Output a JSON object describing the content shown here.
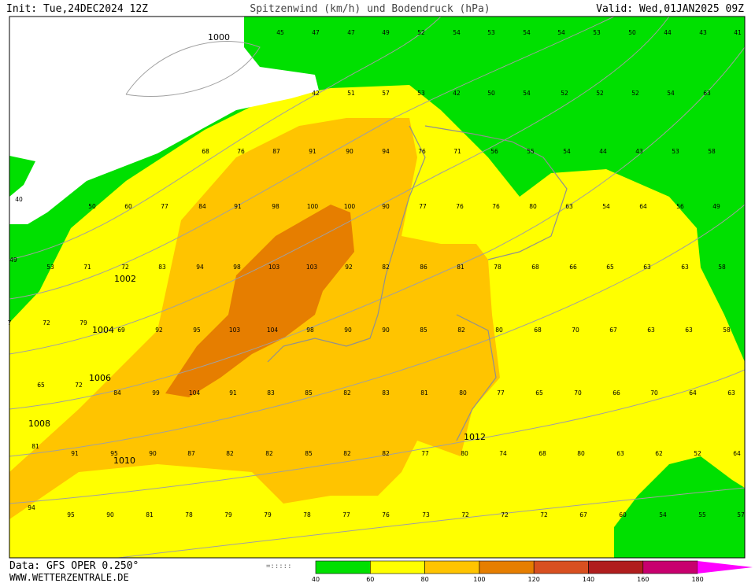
{
  "header": {
    "init": "Init: Tue,24DEC2024 12Z",
    "title": "Spitzenwind (km/h) und Bodendruck (hPa)",
    "valid": "Valid: Wed,01JAN2025 09Z"
  },
  "wind_rows": [
    [
      45,
      47,
      47,
      49,
      52,
      54,
      53,
      54,
      54,
      53,
      50,
      44,
      43,
      41
    ],
    [
      42,
      51,
      57,
      53,
      42,
      50,
      54,
      52,
      52,
      52,
      54,
      63
    ],
    [
      68,
      76,
      87,
      91,
      90,
      94,
      76,
      71,
      56,
      55,
      54,
      44,
      43,
      53,
      58
    ],
    [
      40,
      50,
      60,
      77,
      84,
      91,
      98,
      100,
      100,
      90,
      77,
      76,
      76,
      80,
      63,
      54,
      64,
      56,
      49
    ],
    [
      49,
      53,
      71,
      72,
      83,
      94,
      98,
      103,
      103,
      92,
      82,
      86,
      81,
      78,
      68,
      66,
      65,
      63,
      63,
      58
    ],
    [
      7,
      72,
      79,
      69,
      92,
      95,
      103,
      104,
      98,
      90,
      90,
      85,
      82,
      80,
      68,
      70,
      67,
      63,
      63,
      58
    ],
    [
      65,
      72,
      84,
      99,
      104,
      91,
      83,
      85,
      82,
      83,
      81,
      80,
      77,
      65,
      70,
      66,
      70,
      64,
      63
    ],
    [
      81,
      91,
      95,
      90,
      87,
      82,
      82,
      85,
      82,
      82,
      77,
      80,
      74,
      68,
      80,
      63,
      62,
      52,
      64
    ],
    [
      94,
      95,
      90,
      81,
      78,
      79,
      79,
      78,
      77,
      76,
      73,
      72,
      72,
      72,
      67,
      60,
      54,
      55,
      57
    ]
  ],
  "isobars": [
    1000,
    1002,
    1004,
    1006,
    1008,
    1010,
    1012
  ],
  "legend": {
    "labels": [
      40,
      60,
      80,
      100,
      120,
      140,
      160,
      180
    ],
    "colors": [
      "#00e000",
      "#ffff00",
      "#ffc400",
      "#e67e00",
      "#d85020",
      "#b01e1e",
      "#c8006e",
      "#ff00ff"
    ]
  },
  "footer": {
    "source": "Data: GFS OPER 0.250°",
    "site": "WWW.WETTERZENTRALE.DE"
  }
}
